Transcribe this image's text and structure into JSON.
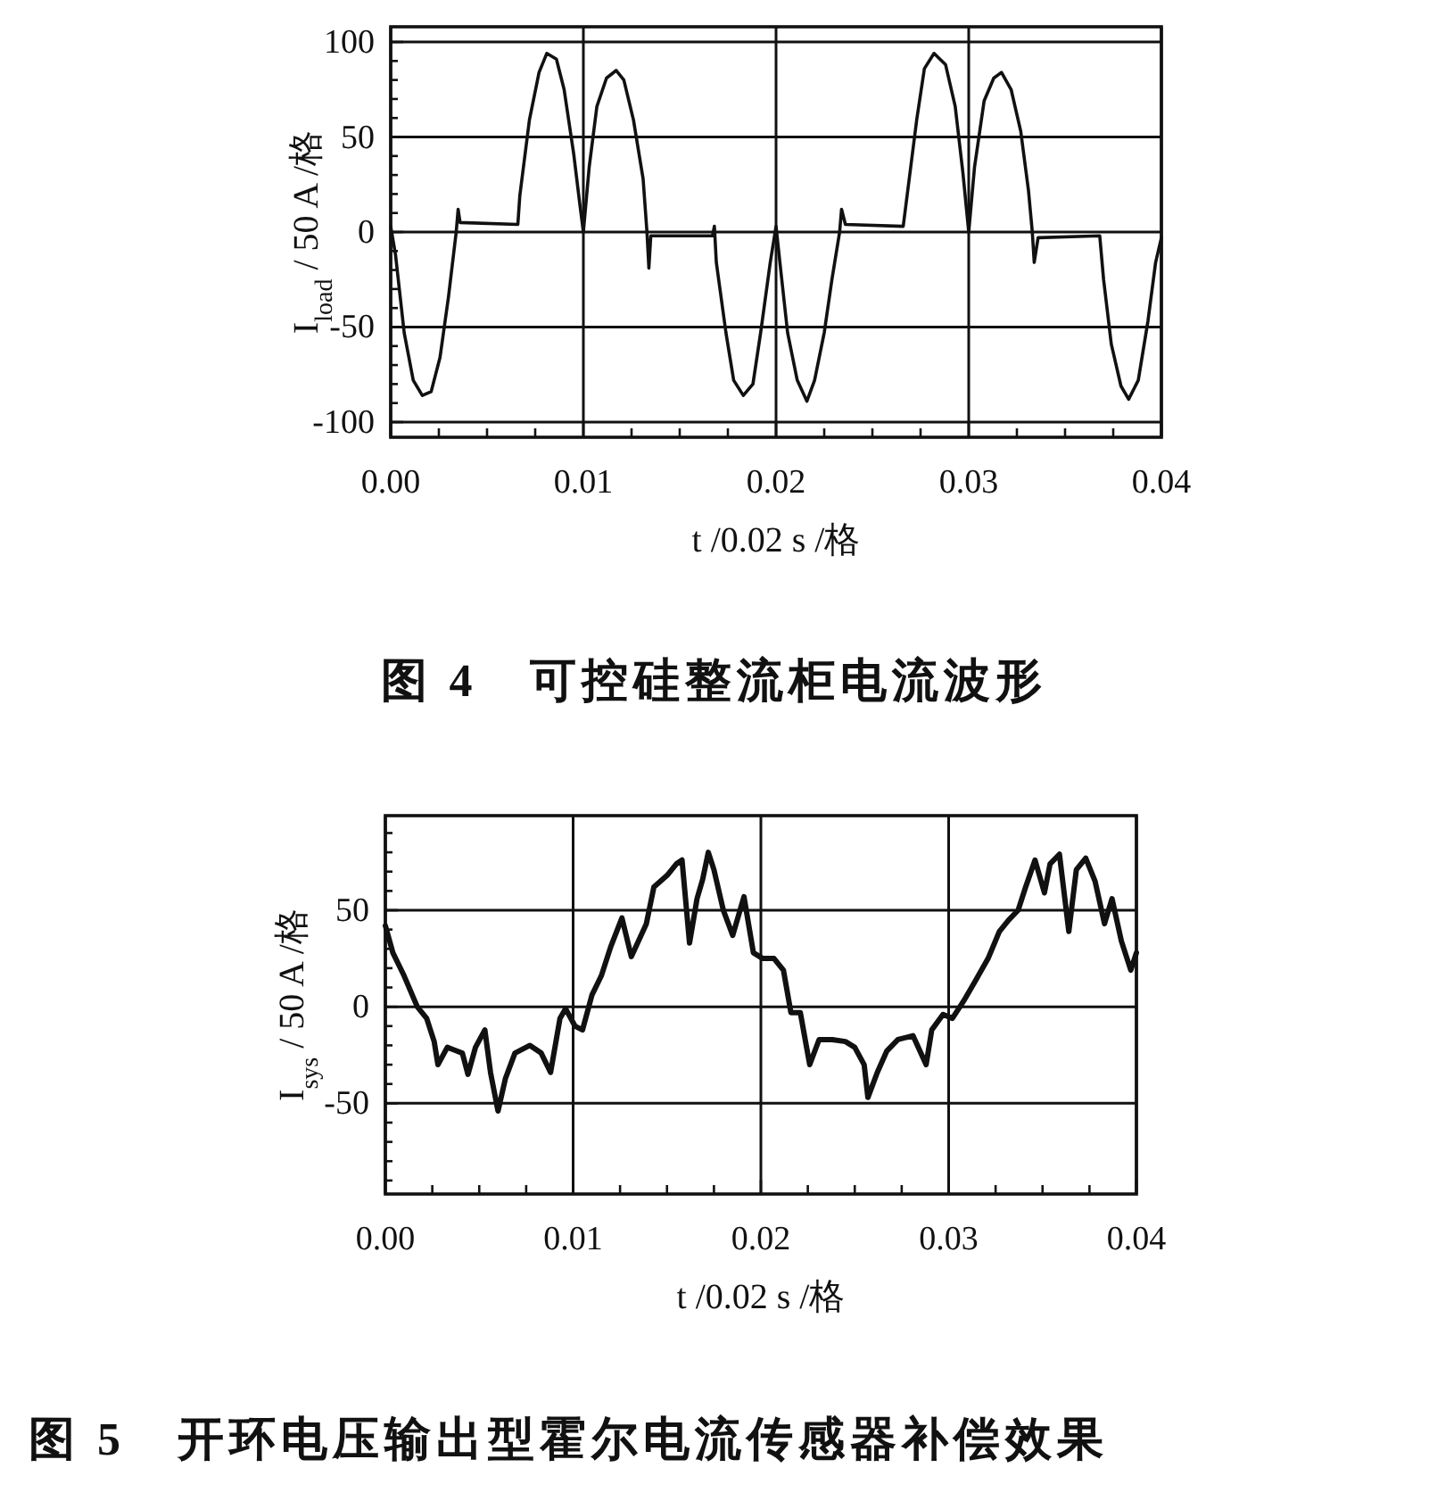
{
  "chart_data": [
    {
      "type": "line",
      "xlabel": "t /0.02 s /格",
      "ylabel": "I$_{load}$ / 50 A /格",
      "annotations": [
        "图 4　可控硅整流柜电流波形"
      ],
      "xlim": [
        0,
        0.04
      ],
      "ylim": [
        -108,
        108
      ],
      "xticks": [
        {
          "value": 0,
          "label": "0.00"
        },
        {
          "value": 0.0025,
          "label": null
        },
        {
          "value": 0.005,
          "label": null
        },
        {
          "value": 0.0075,
          "label": null
        },
        {
          "value": 0.01,
          "label": "0.01"
        },
        {
          "value": 0.0125,
          "label": null
        },
        {
          "value": 0.015,
          "label": null
        },
        {
          "value": 0.0175,
          "label": null
        },
        {
          "value": 0.02,
          "label": "0.02"
        },
        {
          "value": 0.0225,
          "label": null
        },
        {
          "value": 0.025,
          "label": null
        },
        {
          "value": 0.0275,
          "label": null
        },
        {
          "value": 0.03,
          "label": "0.03"
        },
        {
          "value": 0.0325,
          "label": null
        },
        {
          "value": 0.035,
          "label": null
        },
        {
          "value": 0.0375,
          "label": null
        },
        {
          "value": 0.04,
          "label": "0.04"
        }
      ],
      "yticks": [
        -100,
        {
          "value": -90,
          "label": null
        },
        {
          "value": -80,
          "label": null
        },
        {
          "value": -70,
          "label": null
        },
        {
          "value": -60,
          "label": null
        },
        -50,
        {
          "value": -40,
          "label": null
        },
        {
          "value": -30,
          "label": null
        },
        {
          "value": -20,
          "label": null
        },
        {
          "value": -10,
          "label": null
        },
        0,
        {
          "value": 10,
          "label": null
        },
        {
          "value": 20,
          "label": null
        },
        {
          "value": 30,
          "label": null
        },
        {
          "value": 40,
          "label": null
        },
        50,
        {
          "value": 60,
          "label": null
        },
        {
          "value": 70,
          "label": null
        },
        {
          "value": 80,
          "label": null
        },
        {
          "value": 90,
          "label": null
        },
        100
      ],
      "grid": true,
      "series": [
        {
          "color": "#111111",
          "x": [
            0,
            0.00025,
            0.0007,
            0.00117,
            0.00164,
            0.0021,
            0.00256,
            0.003,
            0.0034,
            0.0035,
            0.0036,
            0.0066,
            0.0067,
            0.0072,
            0.0077,
            0.0081,
            0.0086,
            0.009,
            0.0095,
            0.0098,
            0.01,
            0.0103,
            0.0107,
            0.0112,
            0.0117,
            0.0121,
            0.0126,
            0.0131,
            0.0133,
            0.0134,
            0.0135,
            0.0167,
            0.0168,
            0.0169,
            0.0174,
            0.0178,
            0.0183,
            0.0188,
            0.0192,
            0.0197,
            0.02,
            0.0202,
            0.0206,
            0.0211,
            0.0216,
            0.022,
            0.0225,
            0.0229,
            0.0233,
            0.0234,
            0.0236,
            0.0266,
            0.0268,
            0.0273,
            0.0277,
            0.0282,
            0.0288,
            0.0293,
            0.0297,
            0.03,
            0.0303,
            0.0308,
            0.0313,
            0.0317,
            0.0322,
            0.0327,
            0.0331,
            0.0333,
            0.0334,
            0.0336,
            0.0368,
            0.037,
            0.0374,
            0.0379,
            0.0383,
            0.0388,
            0.0393,
            0.0397,
            0.04
          ],
          "values": [
            3,
            -12,
            -53,
            -78,
            -86,
            -84,
            -66,
            -34,
            0,
            12,
            5,
            4,
            19,
            59,
            84,
            94,
            91,
            75,
            41,
            16,
            0,
            34,
            66,
            81,
            85,
            80,
            59,
            28,
            0,
            -19,
            -2,
            -2,
            3,
            -16,
            -53,
            -78,
            -86,
            -80,
            -53,
            -16,
            3,
            -16,
            -53,
            -78,
            -89,
            -78,
            -53,
            -25,
            0,
            12,
            4,
            3,
            19,
            59,
            86,
            94,
            88,
            66,
            31,
            0,
            34,
            69,
            81,
            84,
            75,
            53,
            22,
            0,
            -16,
            -3,
            -2,
            -25,
            -59,
            -81,
            -88,
            -78,
            -47,
            -16,
            -3
          ]
        }
      ]
    },
    {
      "type": "line",
      "xlabel": "t /0.02 s /格",
      "ylabel": "I$_{sys}$ / 50 A /格",
      "annotations": [
        "图 5　开环电压输出型霍尔电流传感器补偿效果"
      ],
      "xlim": [
        0,
        0.04
      ],
      "ylim": [
        -97,
        99
      ],
      "xticks": [
        {
          "value": 0,
          "label": "0.00"
        },
        {
          "value": 0.0025,
          "label": null
        },
        {
          "value": 0.005,
          "label": null
        },
        {
          "value": 0.0075,
          "label": null
        },
        {
          "value": 0.01,
          "label": "0.01"
        },
        {
          "value": 0.0125,
          "label": null
        },
        {
          "value": 0.015,
          "label": null
        },
        {
          "value": 0.0175,
          "label": null
        },
        {
          "value": 0.02,
          "label": "0.02"
        },
        {
          "value": 0.0225,
          "label": null
        },
        {
          "value": 0.025,
          "label": null
        },
        {
          "value": 0.0275,
          "label": null
        },
        {
          "value": 0.03,
          "label": "0.03"
        },
        {
          "value": 0.0325,
          "label": null
        },
        {
          "value": 0.035,
          "label": null
        },
        {
          "value": 0.0375,
          "label": null
        },
        {
          "value": 0.04,
          "label": "0.04"
        }
      ],
      "yticks": [
        {
          "value": -90,
          "label": null
        },
        {
          "value": -80,
          "label": null
        },
        {
          "value": -70,
          "label": null
        },
        {
          "value": -60,
          "label": null
        },
        -50,
        {
          "value": -40,
          "label": null
        },
        {
          "value": -30,
          "label": null
        },
        {
          "value": -20,
          "label": null
        },
        {
          "value": -10,
          "label": null
        },
        0,
        {
          "value": 10,
          "label": null
        },
        {
          "value": 20,
          "label": null
        },
        {
          "value": 30,
          "label": null
        },
        {
          "value": 40,
          "label": null
        },
        50,
        {
          "value": 60,
          "label": null
        },
        {
          "value": 70,
          "label": null
        },
        {
          "value": 80,
          "label": null
        },
        {
          "value": 90,
          "label": null
        }
      ],
      "grid": true,
      "series": [
        {
          "color": "#111111",
          "x": [
            0,
            0.0004,
            0.001,
            0.0017,
            0.0022,
            0.0026,
            0.0028,
            0.0033,
            0.0041,
            0.0044,
            0.0048,
            0.0053,
            0.0056,
            0.006,
            0.0064,
            0.0069,
            0.0077,
            0.0083,
            0.0088,
            0.0093,
            0.0096,
            0.0101,
            0.0105,
            0.011,
            0.0115,
            0.012,
            0.0126,
            0.0131,
            0.0139,
            0.0143,
            0.015,
            0.0155,
            0.0158,
            0.0162,
            0.0166,
            0.0169,
            0.0172,
            0.0175,
            0.018,
            0.0185,
            0.0191,
            0.0196,
            0.0201,
            0.0207,
            0.0212,
            0.0216,
            0.0221,
            0.0226,
            0.0231,
            0.0238,
            0.0245,
            0.025,
            0.0255,
            0.0257,
            0.0262,
            0.0267,
            0.0273,
            0.0281,
            0.0288,
            0.0291,
            0.0297,
            0.0302,
            0.0308,
            0.0314,
            0.0321,
            0.0327,
            0.0332,
            0.0337,
            0.0341,
            0.0346,
            0.0351,
            0.0354,
            0.0359,
            0.0364,
            0.0368,
            0.0373,
            0.0378,
            0.0383,
            0.0387,
            0.0392,
            0.0397,
            0.04
          ],
          "values": [
            42,
            28,
            16,
            0,
            -6,
            -18,
            -30,
            -21,
            -24,
            -35,
            -21,
            -12,
            -34,
            -54,
            -37,
            -24,
            -20,
            -24,
            -34,
            -6,
            -1,
            -10,
            -12,
            6,
            16,
            31,
            46,
            26,
            43,
            62,
            68,
            74,
            76,
            33,
            56,
            66,
            80,
            71,
            50,
            37,
            57,
            28,
            25,
            25,
            19,
            -3,
            -3,
            -30,
            -17,
            -17,
            -18,
            -21,
            -30,
            -47,
            -34,
            -23,
            -17,
            -15,
            -30,
            -12,
            -4,
            -6,
            3,
            13,
            25,
            39,
            45,
            50,
            62,
            76,
            59,
            74,
            79,
            39,
            71,
            77,
            65,
            43,
            56,
            34,
            19,
            28
          ]
        }
      ]
    }
  ]
}
